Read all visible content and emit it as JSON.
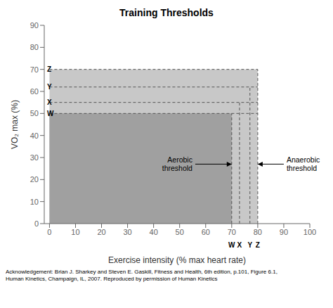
{
  "chart_data": {
    "type": "area",
    "title": "Training Thresholds",
    "x_label": "Exercise intensity (% max heart rate)",
    "y_label": "VO₂ max (%)",
    "xlim": [
      -2,
      100
    ],
    "ylim": [
      0,
      90
    ],
    "xticks": [
      0,
      10,
      20,
      30,
      40,
      50,
      60,
      70,
      80,
      90,
      100
    ],
    "yticks": [
      0,
      10,
      20,
      30,
      40,
      50,
      60,
      70,
      80,
      90
    ],
    "grid": false,
    "regions": [
      {
        "x": [
          0,
          80
        ],
        "y": [
          0,
          70
        ],
        "color": "#c8c8c8"
      },
      {
        "x": [
          0,
          70
        ],
        "y": [
          0,
          50
        ],
        "color": "#a0a0a0"
      }
    ],
    "thresholds": [
      {
        "label": "W",
        "x": 70,
        "y": 50
      },
      {
        "label": "X",
        "x": 73,
        "y": 55
      },
      {
        "label": "Y",
        "x": 77,
        "y": 62
      },
      {
        "label": "Z",
        "x": 80,
        "y": 70
      }
    ],
    "hline_x": [
      0,
      80
    ],
    "line_style": "dashed",
    "color": "#555555",
    "annotations": [
      {
        "text": "Aerobic\nthreshold",
        "x": 56,
        "y": 27,
        "arrow_x": 70
      },
      {
        "text": "Anaerobic\nthreshold",
        "x": 90,
        "y": 27,
        "arrow_x": 80
      }
    ],
    "acknowledgement": "Acknowledgement: Brian J. Sharkey and Steven E. Gaskill, Fitness and Health, 6th edition, p.101, Figure 6.1,\nHuman Kinetics, Champaign, IL, 2007.  Reproduced by permission of Human Kinetics"
  }
}
